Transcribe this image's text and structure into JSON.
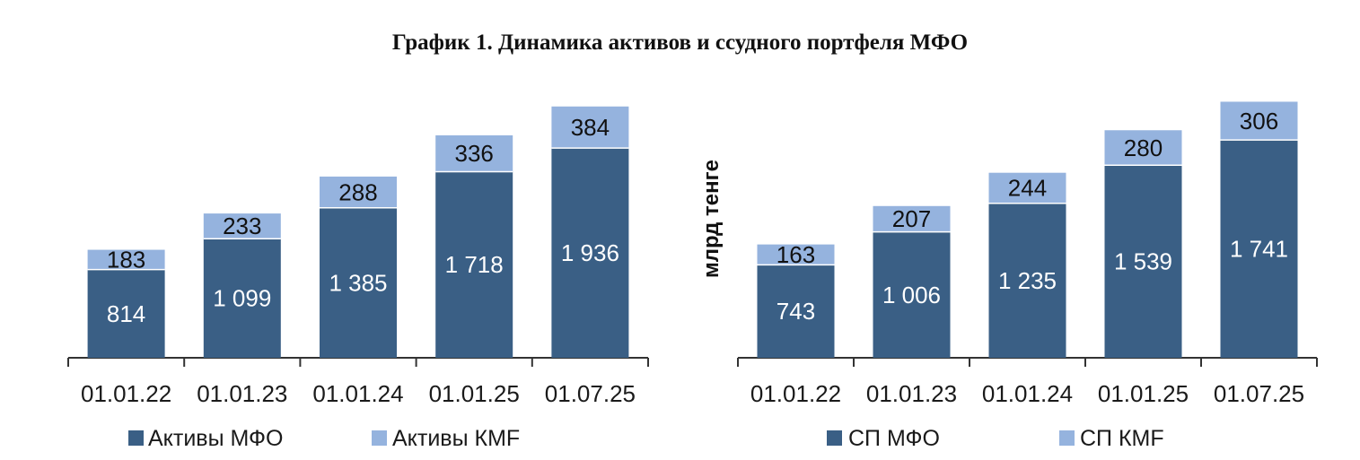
{
  "title": "График 1. Динамика активов и ссудного портфеля МФО",
  "colors": {
    "dark": "#3a5f85",
    "light": "#95b3de"
  },
  "chart_data": [
    {
      "type": "bar",
      "stacked": true,
      "categories": [
        "01.01.22",
        "01.01.23",
        "01.01.24",
        "01.01.25",
        "01.07.25"
      ],
      "series": [
        {
          "name": "Активы МФО",
          "values": [
            814,
            1099,
            1385,
            1718,
            1936
          ],
          "labels": [
            "814",
            "1 099",
            "1 385",
            "1 718",
            "1 936"
          ]
        },
        {
          "name": "Активы КМF",
          "values": [
            183,
            233,
            288,
            336,
            384
          ],
          "labels": [
            "183",
            "233",
            "288",
            "336",
            "384"
          ]
        }
      ],
      "ylabel": "",
      "legend": "bottom"
    },
    {
      "type": "bar",
      "stacked": true,
      "categories": [
        "01.01.22",
        "01.01.23",
        "01.01.24",
        "01.01.25",
        "01.07.25"
      ],
      "series": [
        {
          "name": "СП МФО",
          "values": [
            743,
            1006,
            1235,
            1539,
            1741
          ],
          "labels": [
            "743",
            "1 006",
            "1 235",
            "1 539",
            "1 741"
          ]
        },
        {
          "name": "СП КМF",
          "values": [
            163,
            207,
            244,
            280,
            306
          ],
          "labels": [
            "163",
            "207",
            "244",
            "280",
            "306"
          ]
        }
      ],
      "ylabel": "млрд тенге",
      "legend": "bottom"
    }
  ]
}
